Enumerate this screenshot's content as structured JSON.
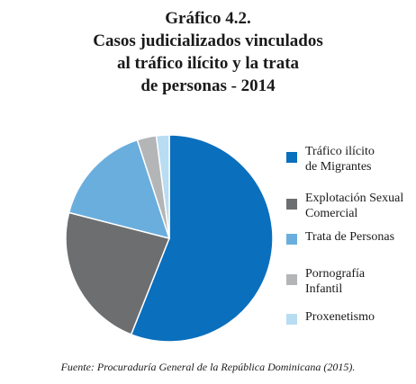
{
  "title": {
    "line1": "Gráfico 4.2.",
    "line2": "Casos judicializados vinculados",
    "line3": "al tráfico ilícito y la trata",
    "line4": "de personas - 2014"
  },
  "source": "Fuente: Procuraduría General de la República Dominicana (2015).",
  "colors": {
    "trafico": "#0a6fbd",
    "explotacion": "#6c6e70",
    "trata": "#6aaede",
    "pornografia": "#b3b5b7",
    "proxenetismo": "#b8dcf2"
  },
  "chart_data": {
    "type": "pie",
    "title": "Casos judicializados vinculados al tráfico ilícito y la trata de personas - 2014",
    "legend_position": "right",
    "slices": [
      {
        "label": "Tráfico ilícito de Migrantes",
        "value": 56,
        "color": "#0a6fbd"
      },
      {
        "label": "Explotación Sexual Comercial",
        "value": 23,
        "color": "#6c6e70"
      },
      {
        "label": "Trata de Personas",
        "value": 16,
        "color": "#6aaede"
      },
      {
        "label": "Pornografía Infantil",
        "value": 3,
        "color": "#b3b5b7"
      },
      {
        "label": "Proxenetismo",
        "value": 2,
        "color": "#b8dcf2"
      }
    ]
  },
  "legend": [
    {
      "line1": "Tráfico ilícito",
      "line2": "de Migrantes"
    },
    {
      "line1": "Explotación Sexual",
      "line2": "Comercial"
    },
    {
      "line1": "Trata de Personas",
      "line2": ""
    },
    {
      "line1": "Pornografía",
      "line2": "Infantil"
    },
    {
      "line1": "Proxenetismo",
      "line2": ""
    }
  ]
}
